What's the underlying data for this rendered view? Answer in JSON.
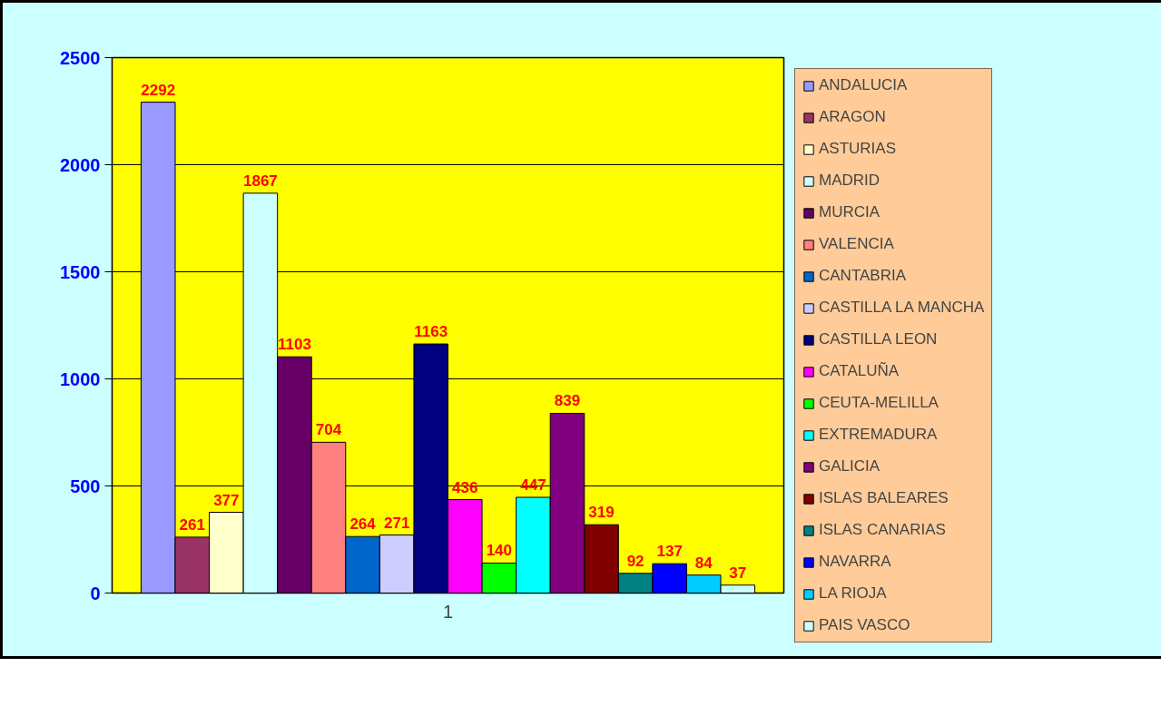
{
  "chart_data": {
    "type": "bar",
    "categories": [
      "1"
    ],
    "ylim": [
      0,
      2500
    ],
    "yticks": [
      0,
      500,
      1000,
      1500,
      2000,
      2500
    ],
    "grid": "y",
    "legend": "right",
    "data_labels": true,
    "series": [
      {
        "name": "ANDALUCIA",
        "color": "#9999ff",
        "values": [
          2292
        ]
      },
      {
        "name": "ARAGON",
        "color": "#993366",
        "values": [
          261
        ]
      },
      {
        "name": "ASTURIAS",
        "color": "#ffffcc",
        "values": [
          377
        ]
      },
      {
        "name": "MADRID",
        "color": "#ccffff",
        "values": [
          1867
        ]
      },
      {
        "name": "MURCIA",
        "color": "#660066",
        "values": [
          1103
        ]
      },
      {
        "name": "VALENCIA",
        "color": "#ff8080",
        "values": [
          704
        ]
      },
      {
        "name": "CANTABRIA",
        "color": "#0066cc",
        "values": [
          264
        ]
      },
      {
        "name": "CASTILLA LA MANCHA",
        "color": "#ccccff",
        "values": [
          271
        ]
      },
      {
        "name": "CASTILLA LEON",
        "color": "#000080",
        "values": [
          1163
        ]
      },
      {
        "name": "CATALUÑA",
        "color": "#ff00ff",
        "values": [
          436
        ]
      },
      {
        "name": "CEUTA-MELILLA",
        "color": "#00ff00",
        "values": [
          140
        ]
      },
      {
        "name": "EXTREMADURA",
        "color": "#00ffff",
        "values": [
          447
        ]
      },
      {
        "name": "GALICIA",
        "color": "#800080",
        "values": [
          839
        ]
      },
      {
        "name": "ISLAS BALEARES",
        "color": "#800000",
        "values": [
          319
        ]
      },
      {
        "name": "ISLAS CANARIAS",
        "color": "#008080",
        "values": [
          92
        ]
      },
      {
        "name": "NAVARRA",
        "color": "#0000ff",
        "values": [
          137
        ]
      },
      {
        "name": "LA RIOJA",
        "color": "#00ccff",
        "values": [
          84
        ]
      },
      {
        "name": "PAIS VASCO",
        "color": "#ccffff",
        "values": [
          37
        ]
      }
    ]
  }
}
